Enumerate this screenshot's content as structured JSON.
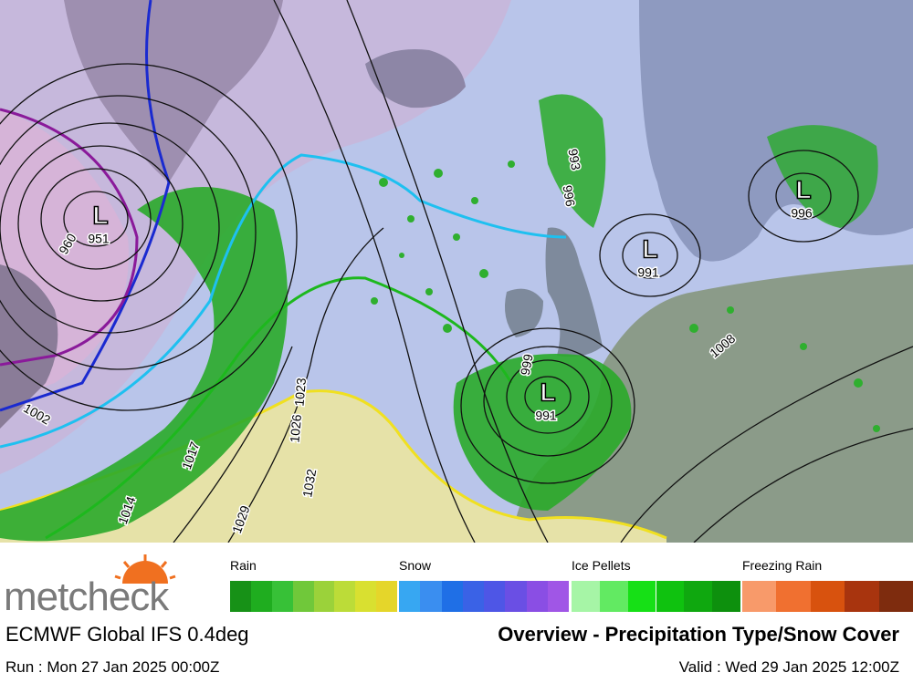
{
  "header": {
    "logo": "metcheck"
  },
  "legend": [
    {
      "label": "Rain",
      "colors": [
        "#179117",
        "#1fad1f",
        "#37c137",
        "#70c83a",
        "#9bd23a",
        "#bcdc38",
        "#d9e030",
        "#e5d62a"
      ]
    },
    {
      "label": "Snow",
      "colors": [
        "#37a7f2",
        "#3a8ef0",
        "#1f6fe6",
        "#3a62e6",
        "#4e56e6",
        "#6a4fe4",
        "#8a4ee4",
        "#a056e6"
      ]
    },
    {
      "label": "Ice Pellets",
      "colors": [
        "#a6f5a6",
        "#62ea62",
        "#16e016",
        "#0fc20f",
        "#0fa80f",
        "#0d900d"
      ]
    },
    {
      "label": "Freezing Rain",
      "colors": [
        "#f89a6a",
        "#f07030",
        "#d8520e",
        "#a8340e",
        "#7e2c0e"
      ]
    }
  ],
  "footer": {
    "model": "ECMWF Global IFS 0.4deg",
    "title": "Overview - Precipitation Type/Snow Cover",
    "run": "Run : Mon 27 Jan 2025 00:00Z",
    "valid": "Valid : Wed 29 Jan 2025 12:00Z"
  },
  "map": {
    "lows": [
      {
        "symbol": "L",
        "pressure": "951"
      },
      {
        "symbol": "L",
        "pressure": "991"
      },
      {
        "symbol": "L",
        "pressure": "996"
      },
      {
        "symbol": "L",
        "pressure": "991"
      }
    ],
    "isobar_labels": [
      "960",
      "993",
      "996",
      "999",
      "1008",
      "1002",
      "1014",
      "1017",
      "1023",
      "1026",
      "1029",
      "1032"
    ]
  }
}
